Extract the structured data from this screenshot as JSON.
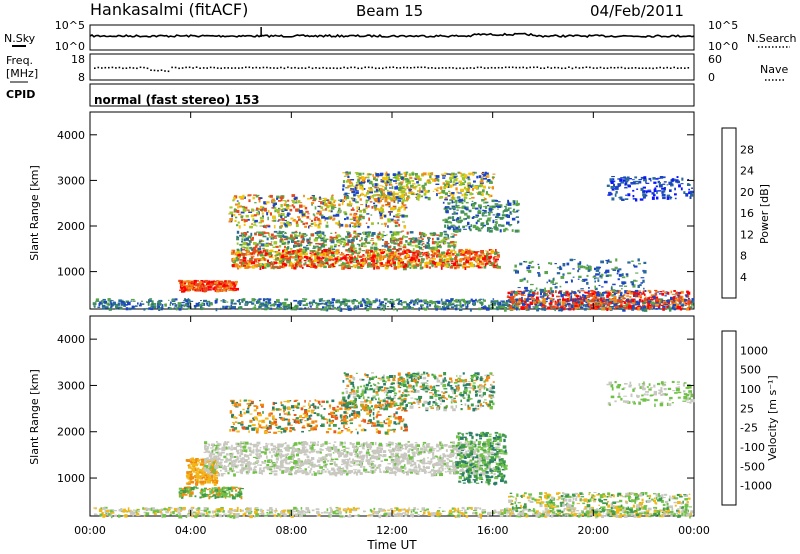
{
  "header": {
    "station": "Hankasalmi (fitACF)",
    "beam": "Beam 15",
    "date": "04/Feb/2011"
  },
  "strip": {
    "nsky_label": "N.Sky",
    "nsearch_label": "N.Search",
    "nsky_left_ticks": [
      "10^5",
      "10^0"
    ],
    "nsky_right_ticks": [
      "10^5",
      "10^0"
    ],
    "freq_label_1": "Freq.",
    "freq_label_2": "[MHz]",
    "freq_ticks": [
      "18",
      "8"
    ],
    "nave_label": "Nave",
    "nave_ticks": [
      "60",
      "0"
    ],
    "cpid_label": "CPID",
    "cpid_text": "normal (fast stereo) 153"
  },
  "chart_data": [
    {
      "type": "heatmap",
      "name": "power",
      "ylabel": "Slant Range [km]",
      "yticks": [
        "4000",
        "3000",
        "2000",
        "1000"
      ],
      "ylim": [
        180,
        4500
      ],
      "colorbar_label": "Power [dB]",
      "colorbar_ticks": [
        "28",
        "24",
        "20",
        "16",
        "12",
        "8",
        "4"
      ],
      "colorbar_colors": [
        "#0a14ff",
        "#1c45c4",
        "#2a6a9a",
        "#3f8d5a",
        "#57a44a",
        "#9dc928",
        "#f2c40a",
        "#f08a18",
        "#e54a1e",
        "#ff0000"
      ]
    },
    {
      "type": "heatmap",
      "name": "velocity",
      "ylabel": "Slant Range [km]",
      "yticks": [
        "4000",
        "3000",
        "2000",
        "1000"
      ],
      "ylim": [
        180,
        4500
      ],
      "colorbar_label": "Velocity [m s⁻¹]",
      "colorbar_ticks": [
        "1000",
        "500",
        "100",
        "25",
        "-25",
        "-100",
        "-500",
        "-1000"
      ],
      "colorbar_colors": [
        "#1e3cc8",
        "#2356a8",
        "#2a7d68",
        "#3f9a4a",
        "#6fc245",
        "#c8c8c0",
        "#c8c8c0",
        "#f2b81a",
        "#f08a10",
        "#e8581a",
        "#ff1010"
      ]
    }
  ],
  "xaxis": {
    "label": "Time UT",
    "ticks": [
      "00:00",
      "04:00",
      "08:00",
      "12:00",
      "16:00",
      "20:00",
      "00:00"
    ]
  }
}
